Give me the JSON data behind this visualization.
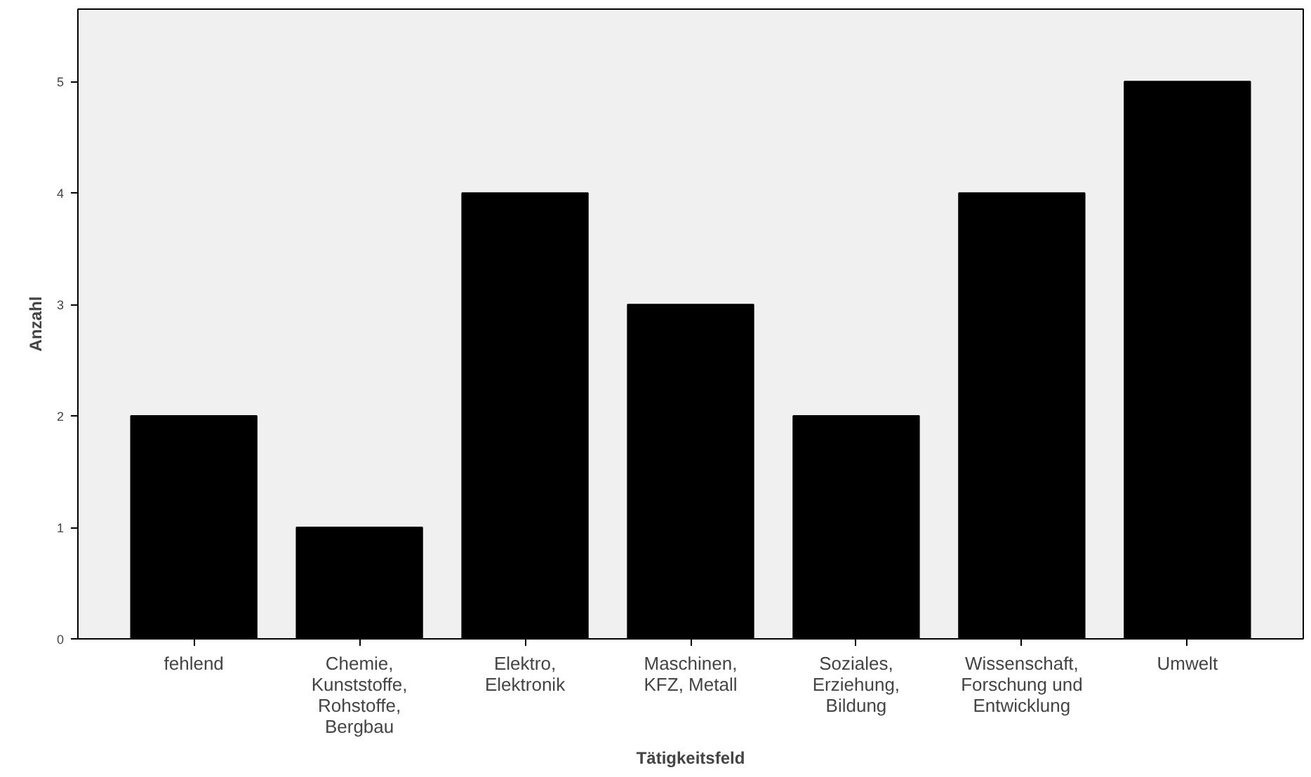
{
  "chart_data": {
    "type": "bar",
    "xlabel": "Tätigkeitsfeld",
    "ylabel": "Anzahl",
    "categories": [
      "fehlend",
      "Chemie,\nKunststoffe,\nRohstoffe,\nBergbau",
      "Elektro,\nElektronik",
      "Maschinen,\nKFZ, Metall",
      "Soziales,\nErziehung,\nBildung",
      "Wissenschaft,\nForschung und\nEntwicklung",
      "Umwelt"
    ],
    "values": [
      2,
      1,
      4,
      3,
      2,
      4,
      5
    ],
    "color": "#000000",
    "ylim": [
      0,
      5.65
    ],
    "yticks": [
      0,
      1,
      2,
      3,
      4,
      5
    ],
    "grid": false
  }
}
